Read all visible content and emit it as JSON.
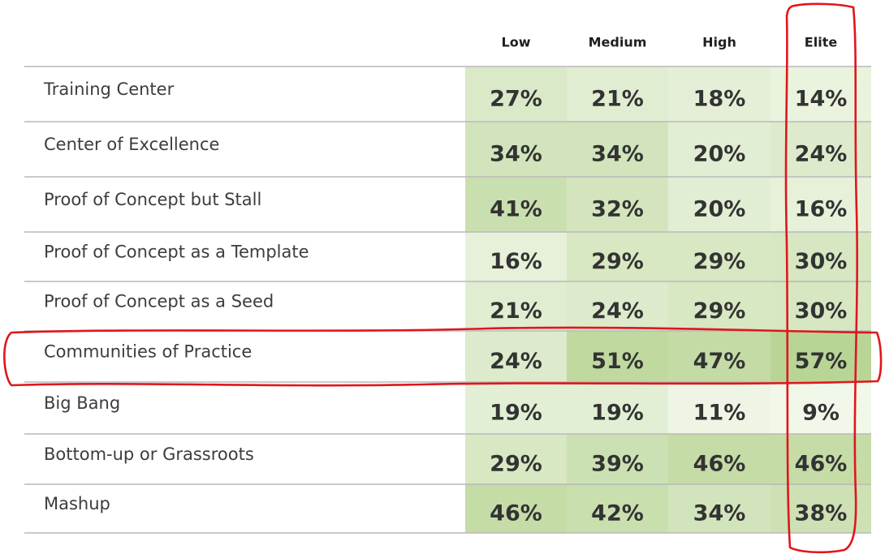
{
  "chart_data": {
    "type": "heatmap",
    "title": "",
    "xlabel": "",
    "ylabel": "",
    "columns": [
      "Low",
      "Medium",
      "High",
      "Elite"
    ],
    "rows": [
      "Training Center",
      "Center of Excellence",
      "Proof of Concept but Stall",
      "Proof of Concept as a Template",
      "Proof of Concept as a Seed",
      "Communities of Practice",
      "Big Bang",
      "Bottom-up or Grassroots",
      "Mashup"
    ],
    "values": [
      [
        27,
        21,
        18,
        14
      ],
      [
        34,
        34,
        20,
        24
      ],
      [
        41,
        32,
        20,
        16
      ],
      [
        16,
        29,
        29,
        30
      ],
      [
        21,
        24,
        29,
        30
      ],
      [
        24,
        51,
        47,
        57
      ],
      [
        19,
        19,
        11,
        9
      ],
      [
        29,
        39,
        46,
        46
      ],
      [
        46,
        42,
        34,
        38
      ]
    ],
    "value_suffix": "%",
    "color_scale": {
      "low": "#f1f7e9",
      "high": "#b9d596"
    },
    "annotations": [
      {
        "type": "hand-drawn-outline",
        "target": "column",
        "label": "Elite",
        "color": "#e0161b"
      },
      {
        "type": "hand-drawn-outline",
        "target": "row",
        "label": "Communities of Practice",
        "color": "#e0161b"
      }
    ]
  }
}
